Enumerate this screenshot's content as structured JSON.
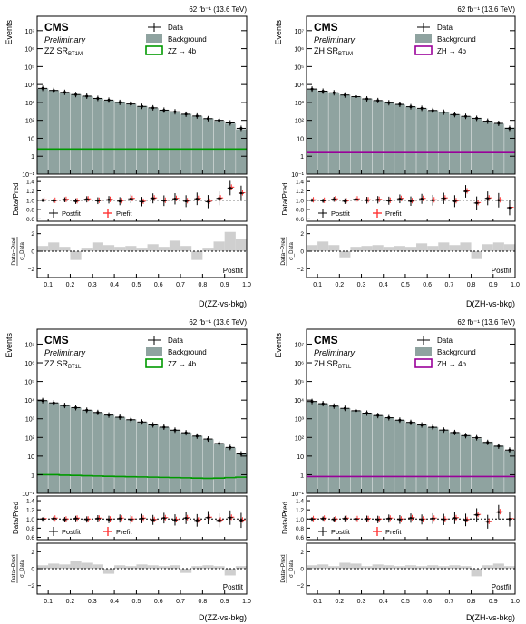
{
  "chart_data": [
    {
      "type": "bar",
      "lumi_label": "62 fb⁻¹ (13.6 TeV)",
      "experiment": "CMS",
      "status": "Preliminary",
      "region_main": "ZZ SR",
      "region_sub": "BT1M",
      "xlabel": "D(ZZ-vs-bkg)",
      "ylabel": "Events",
      "ratio_ylabel": "Data/Pred",
      "pull_ylabel_num": "Data−Pred",
      "pull_ylabel_den": "σ_Data",
      "pull_label": "Postfit",
      "legend": {
        "data": "Data",
        "background": "Background",
        "signal": "ZZ → 4b",
        "postfit": "Postfit",
        "prefit": "Prefit"
      },
      "colors": {
        "background": "#8fa3a0",
        "signal": "#009900",
        "prefit": "#ff3333"
      },
      "xlim": [
        0.05,
        1.0
      ],
      "ylim_log": [
        -1,
        7.8
      ],
      "ratio_ylim": [
        0.55,
        1.5
      ],
      "pull_ylim": [
        -3,
        3
      ],
      "x_ticks": [
        "0.1",
        "0.2",
        "0.3",
        "0.4",
        "0.5",
        "0.6",
        "0.7",
        "0.8",
        "0.9",
        "1.0"
      ],
      "y_ticks": [
        "10⁻¹",
        "1",
        "10",
        "10²",
        "10³",
        "10⁴",
        "10⁵",
        "10⁶",
        "10⁷"
      ],
      "ratio_ticks": [
        "0.6",
        "0.8",
        "1.0",
        "1.2",
        "1.4"
      ],
      "pull_ticks": [
        "−2",
        "0",
        "2"
      ],
      "bin_edges": [
        0.05,
        0.1,
        0.15,
        0.2,
        0.25,
        0.3,
        0.35,
        0.4,
        0.45,
        0.5,
        0.55,
        0.6,
        0.65,
        0.7,
        0.75,
        0.8,
        0.85,
        0.9,
        0.95,
        1.0
      ],
      "background": [
        6000,
        4700,
        3600,
        2800,
        2200,
        1700,
        1320,
        1020,
        800,
        620,
        480,
        375,
        290,
        225,
        170,
        128,
        95,
        68,
        32
      ],
      "signal": [
        2.5,
        2.5,
        2.5,
        2.5,
        2.5,
        2.5,
        2.5,
        2.5,
        2.5,
        2.5,
        2.5,
        2.5,
        2.5,
        2.5,
        2.5,
        2.5,
        2.5,
        2.5,
        2.5
      ],
      "data": [
        6100,
        4650,
        3650,
        2750,
        2250,
        1680,
        1340,
        1000,
        820,
        600,
        500,
        370,
        300,
        220,
        175,
        125,
        100,
        72,
        36
      ],
      "ratio_postfit": [
        1.0,
        0.99,
        1.01,
        0.98,
        1.02,
        0.99,
        1.01,
        0.98,
        1.03,
        0.97,
        1.04,
        0.99,
        1.03,
        0.98,
        1.03,
        0.97,
        1.04,
        1.26,
        1.15
      ],
      "ratio_prefit": [
        1.01,
        1.0,
        1.02,
        0.99,
        1.03,
        1.0,
        1.02,
        0.99,
        1.04,
        0.98,
        1.05,
        1.0,
        1.04,
        0.99,
        1.04,
        0.98,
        1.05,
        1.28,
        1.16
      ],
      "pull": [
        0.6,
        1.0,
        0.5,
        -1.0,
        0.4,
        1.0,
        0.7,
        0.5,
        0.6,
        0.4,
        0.8,
        0.5,
        1.2,
        0.6,
        -1.0,
        0.4,
        1.1,
        2.2,
        1.4
      ]
    },
    {
      "type": "bar",
      "lumi_label": "62 fb⁻¹ (13.6 TeV)",
      "experiment": "CMS",
      "status": "Preliminary",
      "region_main": "ZH SR",
      "region_sub": "BT1M",
      "xlabel": "D(ZH-vs-bkg)",
      "ylabel": "Events",
      "ratio_ylabel": "Data/Pred",
      "pull_ylabel_num": "Data−Pred",
      "pull_ylabel_den": "σ_Data",
      "pull_label": "Postfit",
      "legend": {
        "data": "Data",
        "background": "Background",
        "signal": "ZH → 4b",
        "postfit": "Postfit",
        "prefit": "Prefit"
      },
      "colors": {
        "background": "#8fa3a0",
        "signal": "#990099",
        "prefit": "#ff3333"
      },
      "xlim": [
        0.05,
        1.0
      ],
      "ylim_log": [
        -1,
        7.8
      ],
      "ratio_ylim": [
        0.55,
        1.5
      ],
      "pull_ylim": [
        -3,
        3
      ],
      "x_ticks": [
        "0.1",
        "0.2",
        "0.3",
        "0.4",
        "0.5",
        "0.6",
        "0.7",
        "0.8",
        "0.9",
        "1.0"
      ],
      "y_ticks": [
        "10⁻¹",
        "1",
        "10",
        "10²",
        "10³",
        "10⁴",
        "10⁵",
        "10⁶",
        "10⁷"
      ],
      "ratio_ticks": [
        "0.6",
        "0.8",
        "1.0",
        "1.2",
        "1.4"
      ],
      "pull_ticks": [
        "−2",
        "0",
        "2"
      ],
      "bin_edges": [
        0.05,
        0.1,
        0.15,
        0.2,
        0.25,
        0.3,
        0.35,
        0.4,
        0.45,
        0.5,
        0.55,
        0.6,
        0.65,
        0.7,
        0.75,
        0.8,
        0.85,
        0.9,
        0.95,
        1.0
      ],
      "background": [
        5500,
        4300,
        3400,
        2650,
        2050,
        1600,
        1250,
        980,
        760,
        590,
        460,
        360,
        280,
        215,
        165,
        125,
        92,
        65,
        40
      ],
      "signal": [
        1.6,
        1.6,
        1.6,
        1.6,
        1.6,
        1.6,
        1.6,
        1.6,
        1.6,
        1.6,
        1.6,
        1.6,
        1.6,
        1.6,
        1.6,
        1.6,
        1.6,
        1.6,
        1.6
      ],
      "data": [
        5600,
        4250,
        3450,
        2600,
        2100,
        1580,
        1270,
        960,
        780,
        580,
        470,
        355,
        285,
        210,
        168,
        130,
        90,
        68,
        36
      ],
      "ratio_postfit": [
        1.0,
        0.99,
        1.02,
        0.98,
        1.02,
        1.0,
        1.01,
        0.99,
        1.03,
        0.98,
        1.03,
        1.0,
        1.04,
        0.98,
        1.19,
        0.94,
        1.04,
        1.0,
        0.84
      ],
      "ratio_prefit": [
        1.01,
        1.0,
        1.03,
        0.99,
        1.03,
        1.01,
        1.02,
        1.0,
        1.04,
        0.99,
        1.04,
        1.01,
        1.05,
        0.99,
        1.2,
        0.95,
        1.05,
        1.01,
        0.85
      ],
      "pull": [
        0.7,
        1.1,
        0.7,
        -0.7,
        0.5,
        0.6,
        0.7,
        0.5,
        0.6,
        0.5,
        0.9,
        0.6,
        1.0,
        0.7,
        1.0,
        -0.9,
        0.8,
        1.0,
        0.8
      ]
    },
    {
      "type": "bar",
      "lumi_label": "62 fb⁻¹ (13.6 TeV)",
      "experiment": "CMS",
      "status": "Preliminary",
      "region_main": "ZZ SR",
      "region_sub": "BT1L",
      "xlabel": "D(ZZ-vs-bkg)",
      "ylabel": "Events",
      "ratio_ylabel": "Data/Pred",
      "pull_ylabel_num": "Data−Pred",
      "pull_ylabel_den": "σ_Data",
      "pull_label": "Postfit",
      "legend": {
        "data": "Data",
        "background": "Background",
        "signal": "ZZ → 4b",
        "postfit": "Postfit",
        "prefit": "Prefit"
      },
      "colors": {
        "background": "#8fa3a0",
        "signal": "#009900",
        "prefit": "#ff3333"
      },
      "xlim": [
        0.05,
        1.0
      ],
      "ylim_log": [
        -1,
        7.8
      ],
      "ratio_ylim": [
        0.55,
        1.5
      ],
      "pull_ylim": [
        -3,
        3
      ],
      "x_ticks": [
        "0.1",
        "0.2",
        "0.3",
        "0.4",
        "0.5",
        "0.6",
        "0.7",
        "0.8",
        "0.9",
        "1.0"
      ],
      "y_ticks": [
        "10⁻¹",
        "1",
        "10",
        "10²",
        "10³",
        "10⁴",
        "10⁵",
        "10⁶",
        "10⁷"
      ],
      "ratio_ticks": [
        "0.6",
        "0.8",
        "1.0",
        "1.2",
        "1.4"
      ],
      "pull_ticks": [
        "−2",
        "0",
        "2"
      ],
      "bin_edges": [
        0.05,
        0.1,
        0.15,
        0.2,
        0.25,
        0.3,
        0.35,
        0.4,
        0.45,
        0.5,
        0.55,
        0.6,
        0.65,
        0.7,
        0.75,
        0.8,
        0.85,
        0.9,
        0.95,
        1.0
      ],
      "background": [
        9500,
        7000,
        5200,
        3900,
        2900,
        2150,
        1600,
        1200,
        900,
        660,
        480,
        350,
        250,
        175,
        120,
        80,
        48,
        28,
        14
      ],
      "signal": [
        1.0,
        1.0,
        0.95,
        0.92,
        0.88,
        0.85,
        0.82,
        0.8,
        0.78,
        0.76,
        0.74,
        0.72,
        0.7,
        0.68,
        0.66,
        0.64,
        0.66,
        0.7,
        0.74
      ],
      "data": [
        9400,
        7100,
        5150,
        3950,
        2880,
        2170,
        1580,
        1210,
        890,
        670,
        470,
        355,
        245,
        178,
        118,
        82,
        47,
        29,
        13
      ],
      "ratio_postfit": [
        1.0,
        1.01,
        0.99,
        1.01,
        0.99,
        1.01,
        0.99,
        1.01,
        0.99,
        1.01,
        0.98,
        1.02,
        0.98,
        1.02,
        0.97,
        1.03,
        0.97,
        1.03,
        0.97
      ],
      "ratio_prefit": [
        1.01,
        1.02,
        1.0,
        1.02,
        1.0,
        1.02,
        1.0,
        1.02,
        1.0,
        1.02,
        0.99,
        1.03,
        0.99,
        1.03,
        0.98,
        1.04,
        0.98,
        1.04,
        0.98
      ],
      "pull": [
        0.4,
        0.6,
        0.5,
        0.9,
        0.7,
        0.5,
        -0.6,
        0.4,
        0.3,
        0.5,
        0.4,
        0.3,
        0.4,
        -0.5,
        0.3,
        0.4,
        0.3,
        -0.8,
        0.3
      ]
    },
    {
      "type": "bar",
      "lumi_label": "62 fb⁻¹ (13.6 TeV)",
      "experiment": "CMS",
      "status": "Preliminary",
      "region_main": "ZH SR",
      "region_sub": "BT1L",
      "xlabel": "D(ZH-vs-bkg)",
      "ylabel": "Events",
      "ratio_ylabel": "Data/Pred",
      "pull_ylabel_num": "Data−Pred",
      "pull_ylabel_den": "σ_Data",
      "pull_label": "Postfit",
      "legend": {
        "data": "Data",
        "background": "Background",
        "signal": "ZH → 4b",
        "postfit": "Postfit",
        "prefit": "Prefit"
      },
      "colors": {
        "background": "#8fa3a0",
        "signal": "#990099",
        "prefit": "#ff3333"
      },
      "xlim": [
        0.05,
        1.0
      ],
      "ylim_log": [
        -1,
        7.8
      ],
      "ratio_ylim": [
        0.55,
        1.5
      ],
      "pull_ylim": [
        -3,
        3
      ],
      "x_ticks": [
        "0.1",
        "0.2",
        "0.3",
        "0.4",
        "0.5",
        "0.6",
        "0.7",
        "0.8",
        "0.9",
        "1.0"
      ],
      "y_ticks": [
        "10⁻¹",
        "1",
        "10",
        "10²",
        "10³",
        "10⁴",
        "10⁵",
        "10⁶",
        "10⁷"
      ],
      "ratio_ticks": [
        "0.6",
        "0.8",
        "1.0",
        "1.2",
        "1.4"
      ],
      "pull_ticks": [
        "−2",
        "0",
        "2"
      ],
      "bin_edges": [
        0.05,
        0.1,
        0.15,
        0.2,
        0.25,
        0.3,
        0.35,
        0.4,
        0.45,
        0.5,
        0.55,
        0.6,
        0.65,
        0.7,
        0.75,
        0.8,
        0.85,
        0.9,
        0.95,
        1.0
      ],
      "background": [
        8500,
        6400,
        4800,
        3600,
        2700,
        2000,
        1500,
        1130,
        850,
        630,
        470,
        345,
        250,
        180,
        128,
        88,
        58,
        36,
        20
      ],
      "signal": [
        0.8,
        0.8,
        0.8,
        0.8,
        0.8,
        0.8,
        0.8,
        0.8,
        0.8,
        0.8,
        0.8,
        0.8,
        0.8,
        0.8,
        0.8,
        0.8,
        0.8,
        0.8,
        0.8
      ],
      "data": [
        8450,
        6450,
        4780,
        3620,
        2690,
        2010,
        1490,
        1140,
        845,
        640,
        465,
        350,
        248,
        183,
        125,
        96,
        54,
        34,
        21
      ],
      "ratio_postfit": [
        1.0,
        1.01,
        0.99,
        1.01,
        1.0,
        1.0,
        0.99,
        1.01,
        0.99,
        1.02,
        0.99,
        1.01,
        0.99,
        1.02,
        0.98,
        1.09,
        0.94,
        1.15,
        1.0
      ],
      "ratio_prefit": [
        1.01,
        1.02,
        1.0,
        1.02,
        1.01,
        1.01,
        1.0,
        1.02,
        1.0,
        1.03,
        1.0,
        1.02,
        1.0,
        1.03,
        0.99,
        1.1,
        0.95,
        1.16,
        1.01
      ],
      "pull": [
        0.4,
        0.5,
        0.3,
        0.7,
        0.6,
        0.3,
        0.5,
        0.4,
        0.3,
        0.4,
        0.3,
        0.4,
        0.3,
        0.4,
        0.3,
        -0.9,
        0.4,
        0.6,
        0.3
      ]
    }
  ]
}
